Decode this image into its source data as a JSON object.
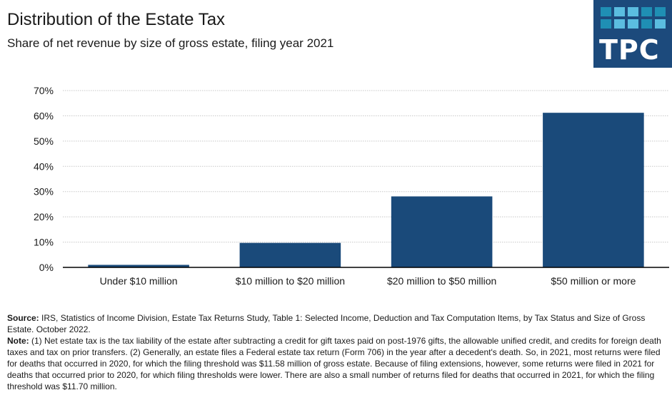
{
  "header": {
    "title": "Distribution of the Estate Tax",
    "subtitle": "Share of net revenue by size of gross estate, filing year 2021"
  },
  "logo": {
    "text": "TPC",
    "background": "#1c4a7c",
    "square_colors": [
      "#1f8fb4",
      "#5bbde0",
      "#5bbde0",
      "#1f8fb4",
      "#1f8fb4",
      "#1f8fb4",
      "#5bbde0",
      "#5bbde0",
      "#1f8fb4",
      "#5bbde0"
    ]
  },
  "chart_data": {
    "type": "bar",
    "title": "Distribution of the Estate Tax",
    "subtitle": "Share of net revenue by size of gross estate, filing year 2021",
    "xlabel": "",
    "ylabel": "",
    "categories": [
      "Under $10 million",
      "$10 million to $20 million",
      "$20 million to $50 million",
      "$50 million or more"
    ],
    "values": [
      1,
      9.7,
      28.1,
      61.2
    ],
    "ylim": [
      0,
      70
    ],
    "yticks": [
      0,
      10,
      20,
      30,
      40,
      50,
      60,
      70
    ],
    "ytick_labels": [
      "0%",
      "10%",
      "20%",
      "30%",
      "40%",
      "50%",
      "60%",
      "70%"
    ],
    "grid": true,
    "bar_color": "#1a4a7a"
  },
  "footer": {
    "source_label": "Source:",
    "source_text": " IRS, Statistics of Income Division, Estate Tax Returns Study, Table 1: Selected Income, Deduction and Tax Computation Items, by Tax Status and Size of Gross Estate. October 2022.",
    "note_label": "Note:",
    "note_text": " (1) Net estate tax is the tax liability of the estate after subtracting a credit for gift taxes paid on post-1976 gifts, the allowable unified credit, and credits for foreign death taxes and tax on prior transfers. (2) Generally, an estate files a Federal estate tax return (Form 706) in the year after a decedent's death. So, in 2021,  most returns were filed for deaths that occurred in 2020,  for which the filing threshold was $11.58 million of gross estate. Because of filing extensions, however, some returns were filed in 2021 for deaths that occurred prior to 2020,  for which filing thresholds were lower. There are also a small number of returns filed for deaths that occurred in 2021,  for which the filing threshold was $11.70 million."
  }
}
